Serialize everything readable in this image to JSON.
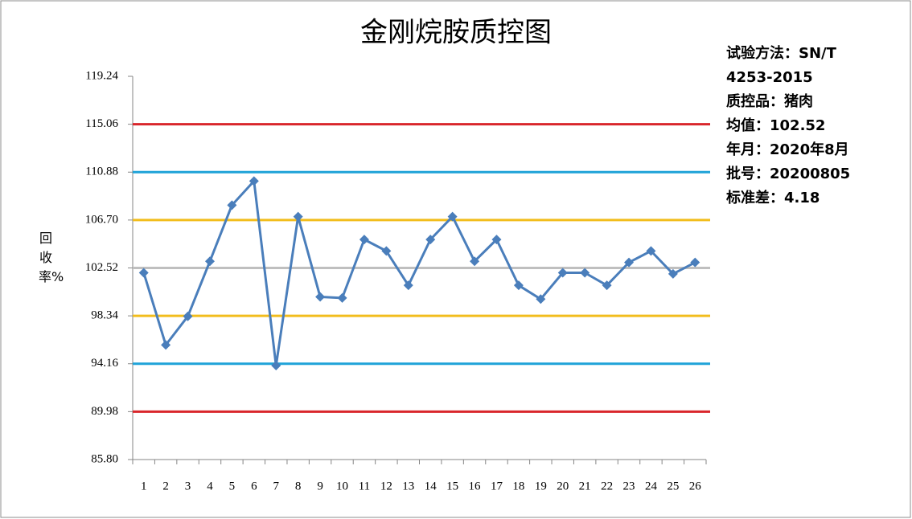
{
  "chart_data": {
    "type": "line",
    "title": "金刚烷胺质控图",
    "y_label": "回收率%",
    "categories": [
      "1",
      "2",
      "3",
      "4",
      "5",
      "6",
      "7",
      "8",
      "9",
      "10",
      "11",
      "12",
      "13",
      "14",
      "15",
      "16",
      "17",
      "18",
      "19",
      "20",
      "21",
      "22",
      "23",
      "24",
      "25",
      "26"
    ],
    "series": [
      {
        "name": "回收率",
        "color": "#4a7ebb",
        "values": [
          102.1,
          95.8,
          98.3,
          103.1,
          108.0,
          110.1,
          94.0,
          107.0,
          100.0,
          99.9,
          105.0,
          104.0,
          101.0,
          105.0,
          107.0,
          103.1,
          105.0,
          101.0,
          99.8,
          102.1,
          102.1,
          101.0,
          103.0,
          104.0,
          102.0,
          103.0
        ]
      }
    ],
    "ylim": [
      85.8,
      119.24
    ],
    "yticks": [
      {
        "value": 85.8,
        "label": "85.80"
      },
      89.98,
      94.16,
      98.34,
      102.52,
      {
        "value": 106.7,
        "label": "106.70"
      },
      110.88,
      115.06,
      119.24
    ],
    "control_lines": [
      {
        "value": 115.06,
        "color": "#d9262b"
      },
      {
        "value": 110.88,
        "color": "#1fa3d8"
      },
      {
        "value": 106.7,
        "color": "#f2bd1c"
      },
      {
        "value": 102.52,
        "color": "#bfbfbf"
      },
      {
        "value": 98.34,
        "color": "#f2bd1c"
      },
      {
        "value": 94.16,
        "color": "#1fa3d8"
      },
      {
        "value": 89.98,
        "color": "#d9262b"
      }
    ],
    "notes": [
      "试验方法：SN/T 4253-2015",
      "质控品：猪肉",
      "均值：102.52",
      "年月：2020年8月",
      "批号：20200805",
      "标准差：4.18"
    ],
    "legend": false
  }
}
